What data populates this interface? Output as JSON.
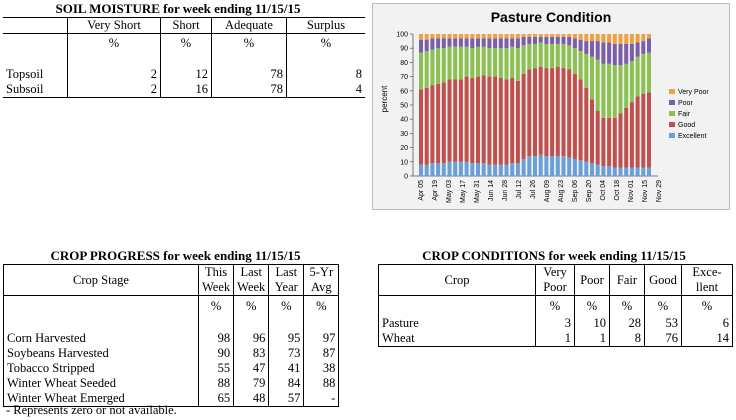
{
  "soil": {
    "title": "SOIL MOISTURE for week ending 11/15/15",
    "columns": [
      "Very Short",
      "Short",
      "Adequate",
      "Surplus"
    ],
    "units": [
      "%",
      "%",
      "%",
      "%"
    ],
    "rows": [
      {
        "label": "Topsoil",
        "values": [
          "2",
          "12",
          "78",
          "8"
        ]
      },
      {
        "label": "Subsoil",
        "values": [
          "2",
          "16",
          "78",
          "4"
        ]
      }
    ]
  },
  "chart_data": {
    "type": "bar",
    "stacked": true,
    "title": "Pasture Condition",
    "ylabel": "percent",
    "ylim": [
      0,
      100
    ],
    "yticks": [
      0,
      10,
      20,
      30,
      40,
      50,
      60,
      70,
      80,
      90,
      100
    ],
    "x_tick_labels": [
      "Apr 05",
      "Apr 19",
      "May 03",
      "May 17",
      "May 31",
      "Jun 14",
      "Jun 28",
      "Jul 12",
      "Jul 26",
      "Aug 09",
      "Aug 23",
      "Sep 06",
      "Sep 20",
      "Oct 04",
      "Oct 18",
      "Nov 01",
      "Nov 15",
      "Nov 29"
    ],
    "legend_position": "right",
    "series": [
      {
        "name": "Excellent",
        "color": "#6a9fd8",
        "values": [
          8,
          8,
          9,
          9,
          9,
          10,
          10,
          10,
          10,
          9,
          9,
          9,
          8,
          8,
          8,
          8,
          9,
          9,
          12,
          14,
          14,
          15,
          14,
          14,
          14,
          14,
          13,
          12,
          11,
          10,
          9,
          8,
          7,
          7,
          6,
          6,
          6,
          6,
          6,
          6,
          6
        ]
      },
      {
        "name": "Good",
        "color": "#c0504d",
        "values": [
          53,
          54,
          55,
          56,
          57,
          58,
          58,
          58,
          60,
          60,
          61,
          62,
          62,
          62,
          61,
          60,
          60,
          58,
          60,
          61,
          62,
          62,
          62,
          62,
          63,
          62,
          62,
          60,
          57,
          52,
          45,
          38,
          34,
          34,
          35,
          38,
          42,
          46,
          50,
          52,
          53
        ]
      },
      {
        "name": "Fair",
        "color": "#8cc152",
        "values": [
          26,
          26,
          25,
          25,
          24,
          23,
          23,
          23,
          21,
          21,
          21,
          20,
          20,
          20,
          21,
          22,
          22,
          23,
          20,
          18,
          17,
          17,
          17,
          17,
          16,
          17,
          17,
          18,
          20,
          24,
          30,
          36,
          38,
          38,
          37,
          34,
          31,
          29,
          28,
          28,
          28
        ]
      },
      {
        "name": "Poor",
        "color": "#7a5fa8",
        "values": [
          9,
          8,
          8,
          7,
          7,
          6,
          6,
          6,
          6,
          7,
          6,
          6,
          7,
          7,
          7,
          7,
          6,
          7,
          6,
          5,
          5,
          4,
          5,
          5,
          5,
          5,
          6,
          7,
          8,
          9,
          11,
          13,
          15,
          15,
          15,
          15,
          14,
          12,
          10,
          9,
          10
        ]
      },
      {
        "name": "Very Poor",
        "color": "#f0a040",
        "values": [
          4,
          4,
          3,
          3,
          3,
          3,
          3,
          3,
          3,
          3,
          3,
          3,
          3,
          3,
          3,
          3,
          3,
          3,
          2,
          2,
          2,
          2,
          2,
          2,
          2,
          2,
          2,
          3,
          4,
          5,
          5,
          5,
          6,
          6,
          7,
          7,
          7,
          7,
          6,
          5,
          3
        ]
      }
    ]
  },
  "progress": {
    "title": "CROP PROGRESS for week ending 11/15/15",
    "stage_header": "Crop Stage",
    "columns": [
      [
        "This",
        "Week"
      ],
      [
        "Last",
        "Week"
      ],
      [
        "Last",
        "Year"
      ],
      [
        "5-Yr",
        "Avg"
      ]
    ],
    "units": [
      "%",
      "%",
      "%",
      "%"
    ],
    "rows": [
      {
        "label": "Corn Harvested",
        "values": [
          "98",
          "96",
          "95",
          "97"
        ]
      },
      {
        "label": "Soybeans Harvested",
        "values": [
          "90",
          "83",
          "73",
          "87"
        ]
      },
      {
        "label": "Tobacco Stripped",
        "values": [
          "55",
          "47",
          "41",
          "38"
        ]
      },
      {
        "label": "Winter Wheat Seeded",
        "values": [
          "88",
          "79",
          "84",
          "88"
        ]
      },
      {
        "label": "Winter Wheat Emerged",
        "values": [
          "65",
          "48",
          "57",
          "-"
        ]
      }
    ],
    "footnote": "- Represents zero or not available."
  },
  "conditions": {
    "title": "CROP CONDITIONS for week ending 11/15/15",
    "crop_header": "Crop",
    "columns": [
      [
        "Very",
        "Poor"
      ],
      [
        "Poor",
        ""
      ],
      [
        "Fair",
        ""
      ],
      [
        "Good",
        ""
      ],
      [
        "Exce-",
        "llent"
      ]
    ],
    "units": [
      "%",
      "%",
      "%",
      "%",
      "%"
    ],
    "rows": [
      {
        "label": "Pasture",
        "values": [
          "3",
          "10",
          "28",
          "53",
          "6"
        ]
      },
      {
        "label": "Wheat",
        "values": [
          "1",
          "1",
          "8",
          "76",
          "14"
        ]
      }
    ]
  }
}
